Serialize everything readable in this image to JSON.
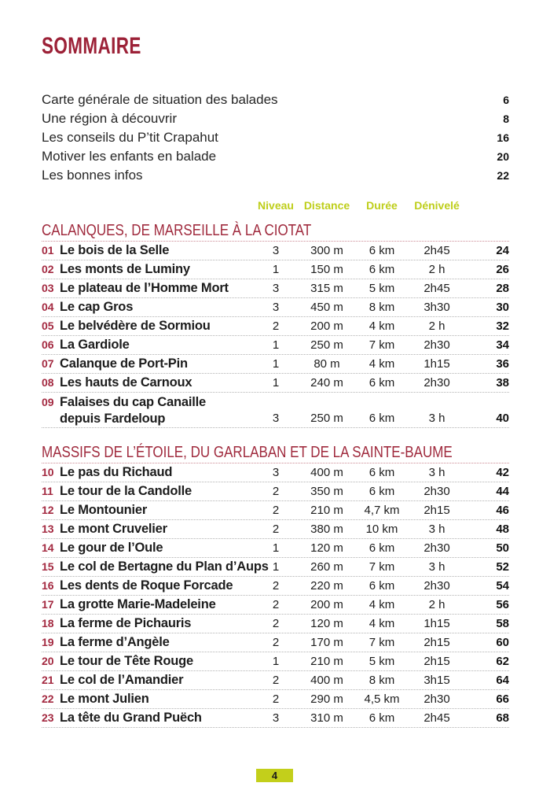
{
  "page": {
    "title": "SOMMAIRE",
    "footer_page_number": "4"
  },
  "colors": {
    "title_red": "#9c2137",
    "section_red": "#a02b3e",
    "number_red": "#a32940",
    "header_green": "#bece1a",
    "badge_green": "#c3cf1b",
    "rule_gray": "#b3b3b3",
    "rule_red": "#cb8b94"
  },
  "intro_items": [
    {
      "label": "Carte générale de situation des balades",
      "page": "6"
    },
    {
      "label": "Une région à découvrir",
      "page": "8"
    },
    {
      "label": "Les conseils du P’tit Crapahut",
      "page": "16"
    },
    {
      "label": "Motiver les enfants en balade",
      "page": "20"
    },
    {
      "label": "Les bonnes infos",
      "page": "22"
    }
  ],
  "table_headers": {
    "niveau": "Niveau",
    "distance": "Distance",
    "duree": "Durée",
    "denivele": "Dénivelé"
  },
  "sections": [
    {
      "title": "CALANQUES, DE MARSEILLE À LA CIOTAT",
      "routes": [
        {
          "num": "01",
          "title": "Le bois de la Selle",
          "niveau": "3",
          "distance": "300 m",
          "duree": "6 km",
          "denivele": "2h45",
          "page": "24"
        },
        {
          "num": "02",
          "title": "Les monts de Luminy",
          "niveau": "1",
          "distance": "150 m",
          "duree": "6 km",
          "denivele": "2 h",
          "page": "26"
        },
        {
          "num": "03",
          "title": "Le plateau de l’Homme Mort",
          "niveau": "3",
          "distance": "315 m",
          "duree": "5 km",
          "denivele": "2h45",
          "page": "28"
        },
        {
          "num": "04",
          "title": "Le cap Gros",
          "niveau": "3",
          "distance": "450 m",
          "duree": "8 km",
          "denivele": "3h30",
          "page": "30"
        },
        {
          "num": "05",
          "title": "Le belvédère de Sormiou",
          "niveau": "2",
          "distance": "200 m",
          "duree": "4 km",
          "denivele": "2 h",
          "page": "32"
        },
        {
          "num": "06",
          "title": "La Gardiole",
          "niveau": "1",
          "distance": "250 m",
          "duree": "7 km",
          "denivele": "2h30",
          "page": "34"
        },
        {
          "num": "07",
          "title": "Calanque de Port-Pin",
          "niveau": "1",
          "distance": "80 m",
          "duree": "4 km",
          "denivele": "1h15",
          "page": "36"
        },
        {
          "num": "08",
          "title": "Les hauts de Carnoux",
          "niveau": "1",
          "distance": "240 m",
          "duree": "6 km",
          "denivele": "2h30",
          "page": "38"
        },
        {
          "num": "09",
          "title": "Falaises du cap Canaille",
          "title_line2": "depuis Fardeloup",
          "niveau": "3",
          "distance": "250 m",
          "duree": "6 km",
          "denivele": "3 h",
          "page": "40"
        }
      ]
    },
    {
      "title": "MASSIFS DE L’ÉTOILE, DU GARLABAN ET DE LA SAINTE-BAUME",
      "routes": [
        {
          "num": "10",
          "title": "Le pas du Richaud",
          "niveau": "3",
          "distance": "400 m",
          "duree": "6 km",
          "denivele": "3 h",
          "page": "42"
        },
        {
          "num": "11",
          "title": "Le tour de la Candolle",
          "niveau": "2",
          "distance": "350 m",
          "duree": "6 km",
          "denivele": "2h30",
          "page": "44"
        },
        {
          "num": "12",
          "title": "Le Montounier",
          "niveau": "2",
          "distance": "210 m",
          "duree": "4,7 km",
          "denivele": "2h15",
          "page": "46"
        },
        {
          "num": "13",
          "title": "Le mont Cruvelier",
          "niveau": "2",
          "distance": "380 m",
          "duree": "10 km",
          "denivele": "3 h",
          "page": "48"
        },
        {
          "num": "14",
          "title": "Le gour de l’Oule",
          "niveau": "1",
          "distance": "120 m",
          "duree": "6 km",
          "denivele": "2h30",
          "page": "50"
        },
        {
          "num": "15",
          "title": "Le col de Bertagne du Plan d’Aups",
          "niveau": "1",
          "distance": "260 m",
          "duree": "7 km",
          "denivele": "3 h",
          "page": "52"
        },
        {
          "num": "16",
          "title": "Les dents de Roque Forcade",
          "niveau": "2",
          "distance": "220 m",
          "duree": "6 km",
          "denivele": "2h30",
          "page": "54"
        },
        {
          "num": "17",
          "title": "La grotte Marie-Madeleine",
          "niveau": "2",
          "distance": "200 m",
          "duree": "4 km",
          "denivele": "2 h",
          "page": "56"
        },
        {
          "num": "18",
          "title": "La ferme de Pichauris",
          "niveau": "2",
          "distance": "120 m",
          "duree": "4 km",
          "denivele": "1h15",
          "page": "58"
        },
        {
          "num": "19",
          "title": "La ferme d’Angèle",
          "niveau": "2",
          "distance": "170 m",
          "duree": "7 km",
          "denivele": "2h15",
          "page": "60"
        },
        {
          "num": "20",
          "title": "Le tour de Tête Rouge",
          "niveau": "1",
          "distance": "210 m",
          "duree": "5 km",
          "denivele": "2h15",
          "page": "62"
        },
        {
          "num": "21",
          "title": "Le col de l’Amandier",
          "niveau": "2",
          "distance": "400 m",
          "duree": "8 km",
          "denivele": "3h15",
          "page": "64"
        },
        {
          "num": "22",
          "title": "Le mont Julien",
          "niveau": "2",
          "distance": "290 m",
          "duree": "4,5 km",
          "denivele": "2h30",
          "page": "66"
        },
        {
          "num": "23",
          "title": "La tête du Grand Puëch",
          "niveau": "3",
          "distance": "310 m",
          "duree": "6 km",
          "denivele": "2h45",
          "page": "68"
        }
      ]
    }
  ]
}
